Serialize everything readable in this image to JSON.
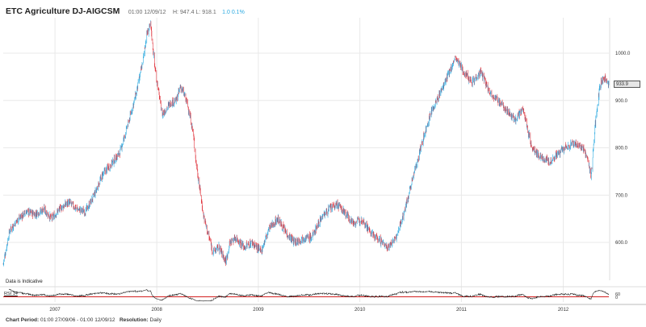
{
  "header": {
    "title": "ETC Agriculture DJ-AIGCSM",
    "timestamp": "01:00 12/09/12",
    "hl": "H: 947.4  L: 918.1",
    "change": "1.0 0.1%"
  },
  "note": "Data is Indicative",
  "rsi_label": "RSI 14",
  "price_box": "933.9",
  "footer": {
    "period_label": "Chart Period:",
    "period_value": "01:00 27/09/06 - 01:00 12/09/12",
    "resolution_label": "Resolution:",
    "resolution_value": "Daily"
  },
  "colors": {
    "up": "#29a9e0",
    "down": "#e0333c",
    "rsi_line": "#222222",
    "rsi_ref": "#cc0000",
    "grid": "#e9e9e9"
  },
  "chart_data": {
    "type": "candlestick",
    "title": "ETC Agriculture DJ-AIGCSM",
    "x_ticks": [
      "2007",
      "2008",
      "2009",
      "2010",
      "2011",
      "2012"
    ],
    "y_ticks": [
      "600.0",
      "700.0",
      "800.0",
      "900.0",
      "1000.0"
    ],
    "ylim": [
      520,
      1075
    ],
    "grid": true,
    "last_value": 933.9,
    "series_approx": {
      "name": "",
      "dates": [
        "2006-09-27",
        "2006-10-20",
        "2006-11-20",
        "2006-12-20",
        "2007-01-20",
        "2007-02-20",
        "2007-03-20",
        "2007-04-20",
        "2007-05-20",
        "2007-06-20",
        "2007-07-20",
        "2007-08-20",
        "2007-09-20",
        "2007-10-20",
        "2007-11-20",
        "2007-12-20",
        "2008-01-20",
        "2008-02-10",
        "2008-02-25",
        "2008-03-10",
        "2008-03-25",
        "2008-04-20",
        "2008-05-20",
        "2008-06-10",
        "2008-06-25",
        "2008-07-10",
        "2008-07-25",
        "2008-08-10",
        "2008-08-20",
        "2008-09-01",
        "2008-09-15",
        "2008-10-01",
        "2008-10-20",
        "2008-11-10",
        "2008-12-05",
        "2008-12-20",
        "2009-01-10",
        "2009-02-10",
        "2009-03-10",
        "2009-04-10",
        "2009-05-10",
        "2009-06-10",
        "2009-07-10",
        "2009-08-10",
        "2009-09-10",
        "2009-10-10",
        "2009-11-10",
        "2009-12-10",
        "2010-01-10",
        "2010-02-10",
        "2010-03-10",
        "2010-04-10",
        "2010-05-10",
        "2010-06-10",
        "2010-07-10",
        "2010-08-10",
        "2010-09-10",
        "2010-10-10",
        "2010-11-10",
        "2010-12-10",
        "2011-01-10",
        "2011-02-10",
        "2011-03-10",
        "2011-04-10",
        "2011-05-10",
        "2011-06-10",
        "2011-07-10",
        "2011-08-10",
        "2011-09-10",
        "2011-10-10",
        "2011-11-10",
        "2011-12-10",
        "2012-01-10",
        "2012-02-10",
        "2012-03-10",
        "2012-04-10",
        "2012-05-10",
        "2012-06-10",
        "2012-06-25",
        "2012-07-10",
        "2012-07-25",
        "2012-08-10",
        "2012-08-25",
        "2012-09-12"
      ],
      "values": [
        555,
        625,
        650,
        665,
        660,
        670,
        650,
        672,
        685,
        670,
        665,
        700,
        745,
        765,
        790,
        850,
        920,
        980,
        1040,
        1060,
        970,
        870,
        895,
        900,
        930,
        910,
        880,
        830,
        770,
        720,
        660,
        620,
        580,
        590,
        560,
        600,
        610,
        590,
        600,
        580,
        630,
        650,
        620,
        600,
        610,
        610,
        650,
        670,
        680,
        660,
        640,
        650,
        620,
        605,
        590,
        610,
        670,
        740,
        810,
        870,
        910,
        950,
        990,
        960,
        940,
        960,
        920,
        900,
        880,
        860,
        880,
        800,
        780,
        770,
        785,
        800,
        810,
        800,
        780,
        740,
        850,
        930,
        950,
        933.9
      ]
    },
    "rsi": {
      "label": "RSI 14",
      "ticks": [
        "60",
        "0"
      ],
      "ylim": [
        0,
        100
      ]
    }
  }
}
